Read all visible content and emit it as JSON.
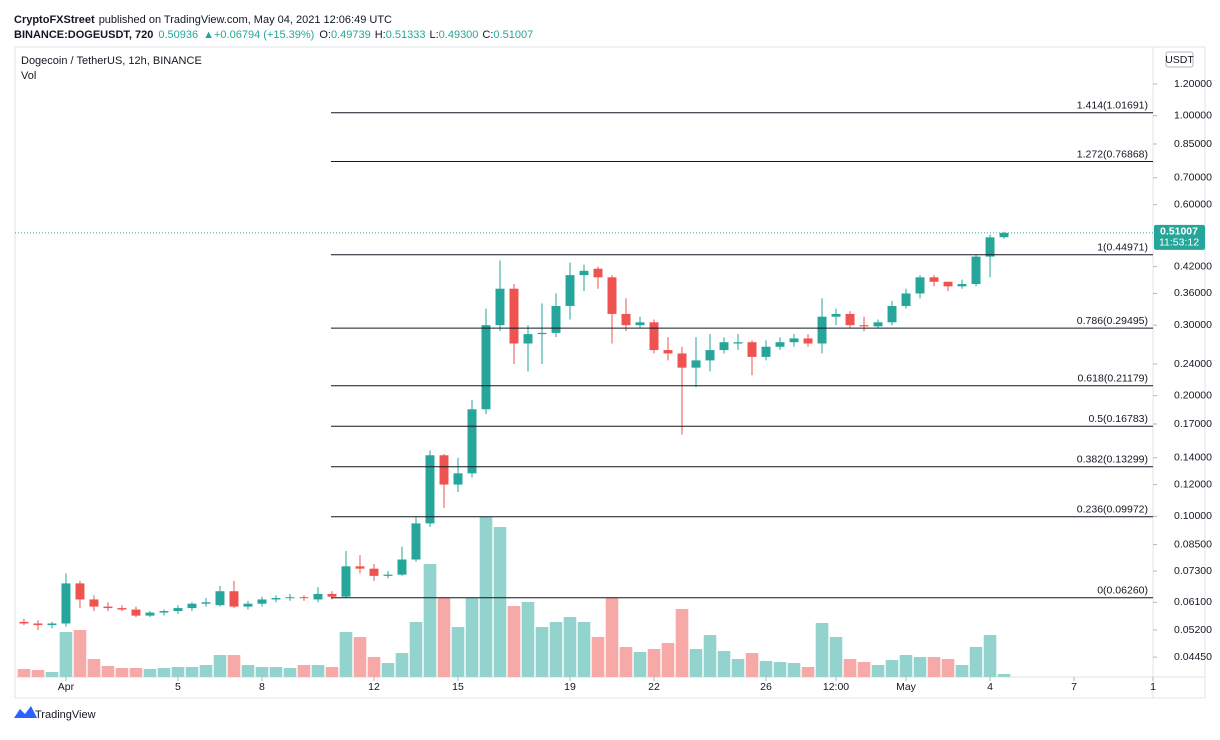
{
  "header": {
    "publisher": "CryptoFXStreet",
    "published": "published on TradingView.com, May 04, 2021 12:06:49 UTC",
    "symbol": "BINANCE:DOGEUSDT, 720",
    "last": "0.50936",
    "change": "▲+0.06794 (+15.39%)",
    "open_label": "O:",
    "open": "0.49739",
    "high_label": "H:",
    "high": "0.51333",
    "low_label": "L:",
    "low": "0.49300",
    "close_label": "C:",
    "close": "0.51007"
  },
  "footer": {
    "brand": "TradingView"
  },
  "chart_data": {
    "type": "candlestick",
    "title": "Dogecoin / TetherUS, 12h, BINANCE",
    "volume_label": "Vol",
    "unit": "USDT",
    "countdown": "11:53:12",
    "log_scale": true,
    "up_color": "#26a69a",
    "down_color": "#ef5350",
    "volume_up_color": "#93d3cd",
    "volume_down_color": "#f7a9a7",
    "xlim": [
      -0.64,
      80.64
    ],
    "xticks": [
      {
        "value": 3,
        "label": "Apr"
      },
      {
        "value": 11,
        "label": "5"
      },
      {
        "value": 17,
        "label": "8"
      },
      {
        "value": 25,
        "label": "12"
      },
      {
        "value": 31,
        "label": "15"
      },
      {
        "value": 39,
        "label": "19"
      },
      {
        "value": 45,
        "label": "22"
      },
      {
        "value": 53,
        "label": "26"
      },
      {
        "value": 58,
        "label": "12:00"
      },
      {
        "value": 63,
        "label": "May"
      },
      {
        "value": 69,
        "label": "4"
      },
      {
        "value": 75,
        "label": "7"
      },
      {
        "value": 81,
        "label": "1"
      }
    ],
    "ylim": [
      0.0397,
      1.4845
    ],
    "yticks": [
      {
        "value": 1.2,
        "label": "1.20000"
      },
      {
        "value": 1.0,
        "label": "1.00000"
      },
      {
        "value": 0.85,
        "label": "0.85000"
      },
      {
        "value": 0.7,
        "label": "0.70000"
      },
      {
        "value": 0.6,
        "label": "0.60000"
      },
      {
        "value": 0.42,
        "label": "0.42000"
      },
      {
        "value": 0.36,
        "label": "0.36000"
      },
      {
        "value": 0.3,
        "label": "0.30000"
      },
      {
        "value": 0.24,
        "label": "0.24000"
      },
      {
        "value": 0.2,
        "label": "0.20000"
      },
      {
        "value": 0.17,
        "label": "0.17000"
      },
      {
        "value": 0.14,
        "label": "0.14000"
      },
      {
        "value": 0.12,
        "label": "0.12000"
      },
      {
        "value": 0.1,
        "label": "0.10000"
      },
      {
        "value": 0.085,
        "label": "0.08500"
      },
      {
        "value": 0.073,
        "label": "0.07300"
      },
      {
        "value": 0.061,
        "label": "0.06100"
      },
      {
        "value": 0.052,
        "label": "0.05200"
      },
      {
        "value": 0.0445,
        "label": "0.04450"
      }
    ],
    "fib_levels": [
      {
        "value": 1.01691,
        "label": "1.414(1.01691)"
      },
      {
        "value": 0.76868,
        "label": "1.272(0.76868)"
      },
      {
        "value": 0.44971,
        "label": "1(0.44971)"
      },
      {
        "value": 0.29495,
        "label": "0.786(0.29495)"
      },
      {
        "value": 0.21179,
        "label": "0.618(0.21179)"
      },
      {
        "value": 0.16783,
        "label": "0.5(0.16783)"
      },
      {
        "value": 0.13299,
        "label": "0.382(0.13299)"
      },
      {
        "value": 0.09972,
        "label": "0.236(0.09972)"
      },
      {
        "value": 0.0626,
        "label": "0(0.06260)"
      }
    ],
    "open": [
      0.0545,
      0.054,
      0.0535,
      0.054,
      0.068,
      0.062,
      0.0595,
      0.059,
      0.0585,
      0.0565,
      0.0575,
      0.058,
      0.059,
      0.0605,
      0.06,
      0.065,
      0.0595,
      0.0605,
      0.062,
      0.0625,
      0.0628,
      0.062,
      0.064,
      0.063,
      0.075,
      0.074,
      0.071,
      0.0715,
      0.078,
      0.096,
      0.142,
      0.12,
      0.128,
      0.185,
      0.3,
      0.37,
      0.27,
      0.285,
      0.287,
      0.335,
      0.4,
      0.415,
      0.395,
      0.32,
      0.3,
      0.305,
      0.26,
      0.255,
      0.235,
      0.245,
      0.26,
      0.27,
      0.272,
      0.25,
      0.265,
      0.272,
      0.278,
      0.27,
      0.315,
      0.32,
      0.3,
      0.298,
      0.305,
      0.335,
      0.36,
      0.395,
      0.385,
      0.375,
      0.38,
      0.445,
      0.49739
    ],
    "high": [
      0.0555,
      0.055,
      0.0545,
      0.072,
      0.069,
      0.0635,
      0.061,
      0.06,
      0.0595,
      0.058,
      0.0585,
      0.06,
      0.061,
      0.0625,
      0.067,
      0.069,
      0.0615,
      0.063,
      0.0635,
      0.064,
      0.0635,
      0.0665,
      0.065,
      0.082,
      0.08,
      0.076,
      0.073,
      0.084,
      0.1,
      0.146,
      0.143,
      0.14,
      0.195,
      0.33,
      0.435,
      0.38,
      0.3,
      0.34,
      0.36,
      0.43,
      0.425,
      0.42,
      0.4,
      0.35,
      0.315,
      0.31,
      0.28,
      0.265,
      0.28,
      0.285,
      0.28,
      0.285,
      0.275,
      0.275,
      0.28,
      0.285,
      0.285,
      0.35,
      0.33,
      0.325,
      0.315,
      0.31,
      0.345,
      0.37,
      0.4,
      0.4,
      0.385,
      0.39,
      0.45,
      0.505,
      0.51333
    ],
    "low": [
      0.0535,
      0.052,
      0.0525,
      0.053,
      0.059,
      0.058,
      0.058,
      0.058,
      0.056,
      0.056,
      0.0565,
      0.057,
      0.058,
      0.0595,
      0.0595,
      0.059,
      0.0585,
      0.0595,
      0.061,
      0.0615,
      0.0615,
      0.061,
      0.062,
      0.0625,
      0.072,
      0.069,
      0.07,
      0.071,
      0.077,
      0.094,
      0.105,
      0.115,
      0.125,
      0.18,
      0.29,
      0.24,
      0.23,
      0.24,
      0.28,
      0.31,
      0.365,
      0.37,
      0.27,
      0.29,
      0.295,
      0.255,
      0.245,
      0.16,
      0.21,
      0.23,
      0.255,
      0.26,
      0.225,
      0.245,
      0.26,
      0.265,
      0.265,
      0.255,
      0.3,
      0.295,
      0.29,
      0.295,
      0.3,
      0.33,
      0.35,
      0.375,
      0.365,
      0.37,
      0.375,
      0.395,
      0.493
    ],
    "close": [
      0.054,
      0.0535,
      0.054,
      0.068,
      0.062,
      0.0595,
      0.059,
      0.0585,
      0.0565,
      0.0575,
      0.058,
      0.059,
      0.0605,
      0.061,
      0.065,
      0.0595,
      0.0605,
      0.062,
      0.0625,
      0.0628,
      0.0625,
      0.064,
      0.063,
      0.075,
      0.074,
      0.071,
      0.0715,
      0.078,
      0.096,
      0.142,
      0.12,
      0.128,
      0.185,
      0.3,
      0.37,
      0.27,
      0.285,
      0.287,
      0.335,
      0.4,
      0.41,
      0.395,
      0.32,
      0.3,
      0.305,
      0.26,
      0.255,
      0.235,
      0.245,
      0.26,
      0.272,
      0.272,
      0.25,
      0.265,
      0.272,
      0.278,
      0.27,
      0.315,
      0.32,
      0.3,
      0.298,
      0.305,
      0.335,
      0.36,
      0.395,
      0.385,
      0.375,
      0.38,
      0.445,
      0.497,
      0.51007
    ],
    "volume": [
      8,
      7,
      5,
      45,
      47,
      18,
      11,
      9,
      9,
      8,
      9,
      10,
      10,
      12,
      22,
      22,
      12,
      10,
      10,
      9,
      12,
      12,
      10,
      45,
      40,
      20,
      14,
      24,
      55,
      113,
      79,
      50,
      79,
      160,
      150,
      71,
      75,
      50,
      55,
      60,
      55,
      40,
      79,
      30,
      25,
      28,
      34,
      68,
      28,
      42,
      26,
      18,
      24,
      16,
      15,
      14,
      10,
      54,
      40,
      18,
      15,
      12,
      17,
      22,
      20,
      20,
      18,
      12,
      30,
      42,
      3
    ]
  }
}
